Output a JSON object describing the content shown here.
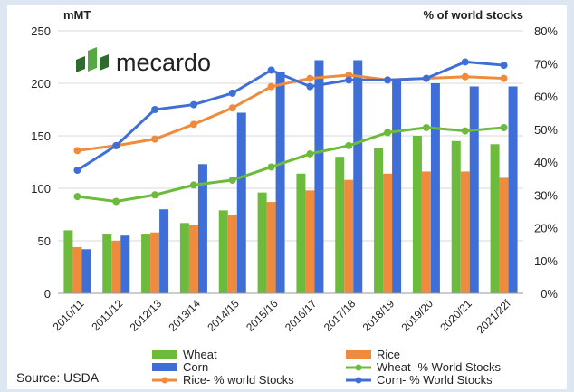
{
  "chart_data": {
    "type": "bar",
    "left_axis_unit": "mMT",
    "right_axis_unit": "% of world stocks",
    "categories": [
      "2010/11",
      "2011/12",
      "2012/13",
      "2013/14",
      "2014/15",
      "2015/16",
      "2016/17",
      "2017/18",
      "2018/19",
      "2019/20",
      "2020/21",
      "2021/22f"
    ],
    "left_ticks": [
      "0",
      "50",
      "100",
      "150",
      "200",
      "250"
    ],
    "right_ticks": [
      "0%",
      "10%",
      "20%",
      "30%",
      "40%",
      "50%",
      "60%",
      "70%",
      "80%"
    ],
    "ylim_left": [
      0,
      250
    ],
    "ylim_right": [
      0,
      80
    ],
    "bar_series": [
      {
        "name": "Wheat",
        "color": "#6cbb3c",
        "values": [
          60,
          56,
          56,
          67,
          79,
          96,
          114,
          130,
          138,
          150,
          145,
          142
        ]
      },
      {
        "name": "Rice",
        "color": "#f08a3c",
        "values": [
          44,
          50,
          58,
          65,
          75,
          87,
          98,
          108,
          114,
          116,
          116,
          110
        ]
      },
      {
        "name": "Corn",
        "color": "#3f6fd6",
        "values": [
          42,
          55,
          80,
          123,
          172,
          211,
          222,
          222,
          203,
          200,
          197,
          197
        ]
      }
    ],
    "line_series": [
      {
        "name": "Wheat- % World Stocks",
        "color": "#6cbb3c",
        "values": [
          29.5,
          28,
          30,
          33,
          34.5,
          38.5,
          42.5,
          45,
          49,
          50.5,
          49.5,
          50.5
        ]
      },
      {
        "name": "Rice- % world Stocks",
        "color": "#f08a3c",
        "values": [
          43.5,
          45,
          47,
          51.5,
          56.5,
          63,
          65.5,
          66.5,
          65,
          65.5,
          66,
          65.5
        ]
      },
      {
        "name": "Corn- % World Stocks",
        "color": "#3f6fd6",
        "values": [
          37.5,
          45,
          56,
          57.5,
          61,
          68,
          63,
          65,
          65,
          65.5,
          70.5,
          69.5
        ]
      }
    ],
    "legend_position": "bottom",
    "grid": "horizontal"
  },
  "logo_text": "mecardo",
  "source_text": "Source: USDA"
}
